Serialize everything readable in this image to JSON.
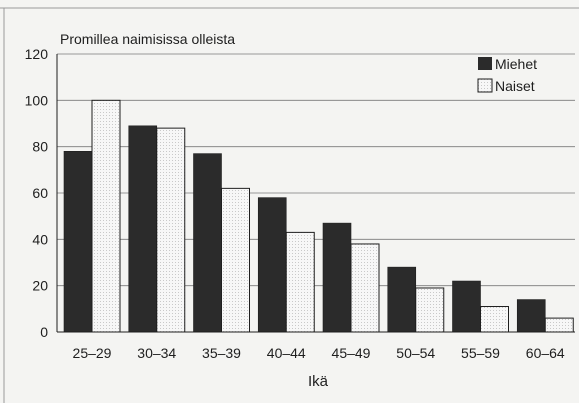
{
  "chart_data": {
    "type": "bar",
    "title": "",
    "ylabel": "Promillea naimisissa olleista",
    "xlabel": "Ikä",
    "categories": [
      "25–29",
      "30–34",
      "35–39",
      "40–44",
      "45–49",
      "50–54",
      "55–59",
      "60–64"
    ],
    "series": [
      {
        "name": "Miehet",
        "values": [
          78,
          89,
          77,
          58,
          47,
          28,
          22,
          14
        ],
        "color": "#2b2b2b"
      },
      {
        "name": "Naiset",
        "values": [
          100,
          88,
          62,
          43,
          38,
          19,
          11,
          6
        ],
        "color": "#f2f2f2"
      }
    ],
    "ylim": [
      0,
      120
    ],
    "yticks": [
      0,
      20,
      40,
      60,
      80,
      100,
      120
    ],
    "grid": true,
    "legend_position": "top-right"
  }
}
